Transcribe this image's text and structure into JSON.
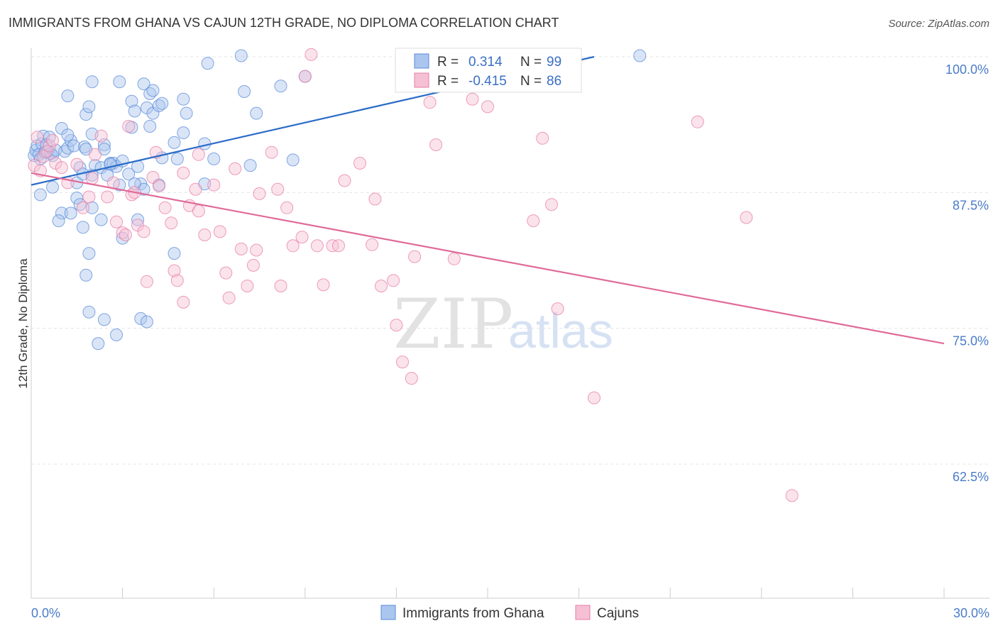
{
  "chart_data": {
    "type": "scatter",
    "title": "IMMIGRANTS FROM GHANA VS CAJUN 12TH GRADE, NO DIPLOMA CORRELATION CHART",
    "source": "Source: ZipAtlas.com",
    "xlabel": "",
    "ylabel": "12th Grade, No Diploma",
    "xlim": [
      0,
      30
    ],
    "ylim": [
      50,
      102
    ],
    "x_tick_labels": [
      "0.0%",
      "30.0%"
    ],
    "y_ticks": [
      100,
      87.5,
      75,
      62.5
    ],
    "y_tick_labels": [
      "100.0%",
      "87.5%",
      "75.0%",
      "62.5%"
    ],
    "grid": true,
    "watermark": {
      "zip": "ZIP",
      "atlas": "atlas"
    },
    "colors": {
      "series1": "#5b8bd9",
      "series1_fill": "#aac6ee",
      "series2": "#e57ea5",
      "series2_fill": "#f6c0d4",
      "line1": "#2b6cc8",
      "line2": "#e06a98"
    },
    "legend": {
      "entries": [
        {
          "r_label": "R =",
          "r_value": "0.314",
          "n_label": "N =",
          "n_value": "99"
        },
        {
          "r_label": "R =",
          "r_value": "-0.415",
          "n_label": "N =",
          "n_value": "86"
        }
      ]
    },
    "series": [
      {
        "name": "Immigrants from Ghana",
        "trend": {
          "x0": 0,
          "y0": 88.2,
          "x1": 18.5,
          "y1": 100.0
        },
        "points": [
          [
            0.1,
            90.9
          ],
          [
            0.15,
            91.4
          ],
          [
            0.2,
            91.8
          ],
          [
            0.25,
            91.0
          ],
          [
            0.3,
            90.6
          ],
          [
            0.35,
            92.0
          ],
          [
            0.4,
            92.7
          ],
          [
            0.45,
            91.2
          ],
          [
            0.5,
            91.9
          ],
          [
            0.55,
            91.3
          ],
          [
            0.6,
            92.6
          ],
          [
            0.65,
            91.1
          ],
          [
            0.7,
            90.9
          ],
          [
            0.8,
            91.4
          ],
          [
            1.0,
            93.4
          ],
          [
            1.1,
            91.3
          ],
          [
            1.2,
            91.6
          ],
          [
            1.3,
            92.3
          ],
          [
            1.4,
            91.8
          ],
          [
            1.5,
            88.4
          ],
          [
            1.6,
            89.8
          ],
          [
            1.7,
            89.2
          ],
          [
            1.75,
            91.7
          ],
          [
            2.0,
            89.1
          ],
          [
            2.1,
            90.0
          ],
          [
            2.3,
            89.8
          ],
          [
            2.5,
            89.1
          ],
          [
            2.6,
            90.2
          ],
          [
            2.7,
            90.2
          ],
          [
            2.8,
            89.9
          ],
          [
            3.0,
            90.4
          ],
          [
            3.2,
            89.2
          ],
          [
            3.5,
            89.9
          ],
          [
            3.6,
            88.3
          ],
          [
            3.7,
            87.8
          ],
          [
            4.2,
            88.2
          ],
          [
            4.3,
            90.7
          ],
          [
            4.7,
            92.1
          ],
          [
            4.8,
            90.6
          ],
          [
            5.0,
            93.0
          ],
          [
            5.7,
            92.0
          ],
          [
            1.2,
            92.8
          ],
          [
            1.8,
            91.5
          ],
          [
            0.3,
            87.3
          ],
          [
            0.7,
            88.0
          ],
          [
            1.0,
            85.6
          ],
          [
            0.9,
            84.9
          ],
          [
            1.3,
            85.6
          ],
          [
            1.5,
            87.0
          ],
          [
            1.6,
            86.4
          ],
          [
            1.7,
            84.3
          ],
          [
            2.0,
            86.1
          ],
          [
            2.3,
            85.0
          ],
          [
            2.9,
            88.2
          ],
          [
            3.0,
            83.3
          ],
          [
            3.5,
            85.0
          ],
          [
            1.8,
            79.9
          ],
          [
            1.9,
            81.9
          ],
          [
            1.9,
            76.5
          ],
          [
            2.4,
            75.8
          ],
          [
            2.2,
            73.6
          ],
          [
            2.8,
            74.4
          ],
          [
            3.6,
            75.9
          ],
          [
            3.8,
            75.6
          ],
          [
            4.7,
            81.9
          ],
          [
            1.2,
            96.4
          ],
          [
            1.8,
            94.7
          ],
          [
            1.9,
            95.4
          ],
          [
            2.0,
            92.9
          ],
          [
            2.0,
            97.7
          ],
          [
            2.9,
            97.7
          ],
          [
            3.3,
            95.9
          ],
          [
            3.4,
            95.0
          ],
          [
            3.7,
            97.5
          ],
          [
            3.8,
            95.3
          ],
          [
            3.9,
            96.6
          ],
          [
            4.0,
            94.8
          ],
          [
            4.0,
            96.9
          ],
          [
            4.2,
            95.5
          ],
          [
            4.3,
            95.7
          ],
          [
            5.0,
            96.1
          ],
          [
            5.1,
            94.8
          ],
          [
            3.3,
            93.5
          ],
          [
            3.9,
            93.6
          ],
          [
            5.8,
            99.4
          ],
          [
            6.9,
            100.1
          ],
          [
            7.0,
            96.8
          ],
          [
            7.4,
            94.8
          ],
          [
            8.2,
            97.3
          ],
          [
            9.0,
            98.2
          ],
          [
            8.6,
            90.5
          ],
          [
            7.2,
            90.0
          ],
          [
            20.0,
            100.1
          ],
          [
            2.4,
            91.9
          ],
          [
            2.4,
            91.5
          ],
          [
            2.6,
            90.1
          ],
          [
            5.7,
            88.3
          ],
          [
            6.0,
            90.6
          ],
          [
            3.4,
            88.3
          ]
        ]
      },
      {
        "name": "Cajuns",
        "trend": {
          "x0": 0,
          "y0": 89.3,
          "x1": 30,
          "y1": 73.6
        },
        "points": [
          [
            0.1,
            90.0
          ],
          [
            0.2,
            92.6
          ],
          [
            0.3,
            89.5
          ],
          [
            0.4,
            90.8
          ],
          [
            0.5,
            91.3
          ],
          [
            0.6,
            91.8
          ],
          [
            0.7,
            92.3
          ],
          [
            0.8,
            90.2
          ],
          [
            1.0,
            89.8
          ],
          [
            1.2,
            88.4
          ],
          [
            1.5,
            90.1
          ],
          [
            1.7,
            86.1
          ],
          [
            1.9,
            87.1
          ],
          [
            2.0,
            88.8
          ],
          [
            2.1,
            91.0
          ],
          [
            2.3,
            92.7
          ],
          [
            2.5,
            87.1
          ],
          [
            2.7,
            88.4
          ],
          [
            2.8,
            84.8
          ],
          [
            3.0,
            83.8
          ],
          [
            3.1,
            83.6
          ],
          [
            3.3,
            87.3
          ],
          [
            3.4,
            87.5
          ],
          [
            3.5,
            84.5
          ],
          [
            3.7,
            83.9
          ],
          [
            3.8,
            79.3
          ],
          [
            4.0,
            88.9
          ],
          [
            4.2,
            88.1
          ],
          [
            4.4,
            86.1
          ],
          [
            4.6,
            84.7
          ],
          [
            4.7,
            80.3
          ],
          [
            5.0,
            89.3
          ],
          [
            5.2,
            86.3
          ],
          [
            5.4,
            87.8
          ],
          [
            5.5,
            85.8
          ],
          [
            5.7,
            83.6
          ],
          [
            6.0,
            88.2
          ],
          [
            6.2,
            83.9
          ],
          [
            6.4,
            80.1
          ],
          [
            6.7,
            89.7
          ],
          [
            6.9,
            82.3
          ],
          [
            7.1,
            78.9
          ],
          [
            7.3,
            80.8
          ],
          [
            7.4,
            82.2
          ],
          [
            7.9,
            91.2
          ],
          [
            8.1,
            87.8
          ],
          [
            8.2,
            78.9
          ],
          [
            8.4,
            86.1
          ],
          [
            8.6,
            82.6
          ],
          [
            8.9,
            83.4
          ],
          [
            9.4,
            82.6
          ],
          [
            9.6,
            79.0
          ],
          [
            9.9,
            82.6
          ],
          [
            10.1,
            82.6
          ],
          [
            10.3,
            88.6
          ],
          [
            10.8,
            90.2
          ],
          [
            11.2,
            82.7
          ],
          [
            11.5,
            78.9
          ],
          [
            11.3,
            86.9
          ],
          [
            11.9,
            79.4
          ],
          [
            12.0,
            75.3
          ],
          [
            12.2,
            71.9
          ],
          [
            12.5,
            70.4
          ],
          [
            12.6,
            81.6
          ],
          [
            13.1,
            95.8
          ],
          [
            13.3,
            91.9
          ],
          [
            13.9,
            81.4
          ],
          [
            14.5,
            96.1
          ],
          [
            15.0,
            95.4
          ],
          [
            16.5,
            84.9
          ],
          [
            16.8,
            92.5
          ],
          [
            17.1,
            86.4
          ],
          [
            17.3,
            76.8
          ],
          [
            18.5,
            68.6
          ],
          [
            21.9,
            94.0
          ],
          [
            23.5,
            85.2
          ],
          [
            25.0,
            59.6
          ],
          [
            9.0,
            98.2
          ],
          [
            9.2,
            100.2
          ],
          [
            7.5,
            87.4
          ],
          [
            5.0,
            77.4
          ],
          [
            4.8,
            79.4
          ],
          [
            6.5,
            77.8
          ],
          [
            5.5,
            91.0
          ],
          [
            3.2,
            93.6
          ],
          [
            4.1,
            91.2
          ]
        ]
      }
    ]
  }
}
